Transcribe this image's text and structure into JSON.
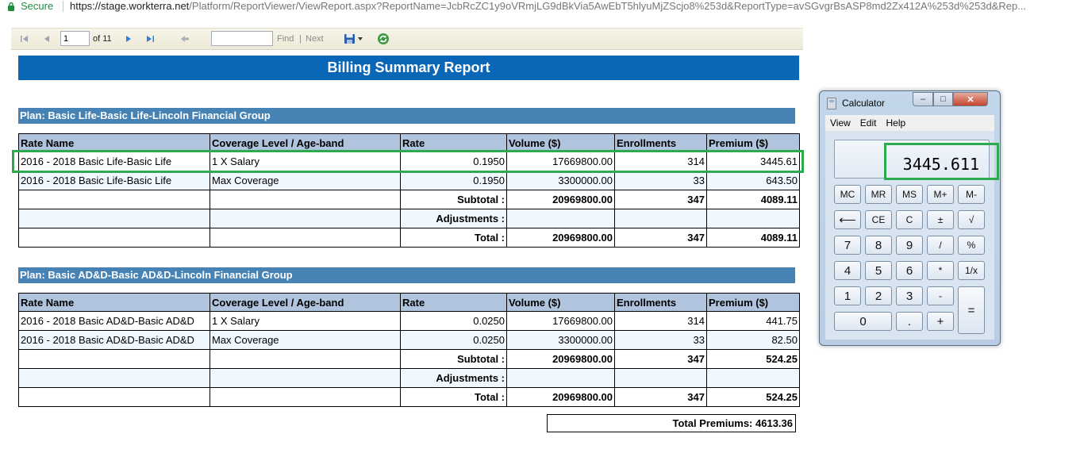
{
  "browser": {
    "secure_label": "Secure",
    "url_host": "https://stage.workterra.net",
    "url_path": "/Platform/ReportViewer/ViewReport.aspx?ReportName=JcbRcZC1y9oVRmjLG9dBkVia5AwEbT5hlyuMjZScjo8%253d&ReportType=avSGvgrBsASP8md2Zx412A%253d%253d&Rep..."
  },
  "toolbar": {
    "page_value": "1",
    "of_label": "of 11",
    "find_label": "Find",
    "separator": "|",
    "next_label": "Next"
  },
  "report": {
    "title": "Billing Summary Report",
    "columns": [
      "Rate Name",
      "Coverage Level / Age-band",
      "Rate",
      "Volume ($)",
      "Enrollments",
      "Premium ($)"
    ],
    "plans": [
      {
        "header": "Plan: Basic Life-Basic Life-Lincoln Financial Group",
        "rows": [
          [
            "2016 - 2018 Basic Life-Basic Life",
            "1 X Salary",
            "0.1950",
            "17669800.00",
            "314",
            "3445.61"
          ],
          [
            "2016 - 2018 Basic Life-Basic Life",
            "Max Coverage",
            "0.1950",
            "3300000.00",
            "33",
            "643.50"
          ]
        ],
        "subtotal_label": "Subtotal :",
        "subtotal": [
          "20969800.00",
          "347",
          "4089.11"
        ],
        "adjustments_label": "Adjustments :",
        "total_label": "Total :",
        "total": [
          "20969800.00",
          "347",
          "4089.11"
        ]
      },
      {
        "header": "Plan: Basic AD&D-Basic AD&D-Lincoln Financial Group",
        "rows": [
          [
            "2016 - 2018 Basic AD&D-Basic AD&D",
            "1 X Salary",
            "0.0250",
            "17669800.00",
            "314",
            "441.75"
          ],
          [
            "2016 - 2018 Basic AD&D-Basic AD&D",
            "Max Coverage",
            "0.0250",
            "3300000.00",
            "33",
            "82.50"
          ]
        ],
        "subtotal_label": "Subtotal :",
        "subtotal": [
          "20969800.00",
          "347",
          "524.25"
        ],
        "adjustments_label": "Adjustments :",
        "total_label": "Total :",
        "total": [
          "20969800.00",
          "347",
          "524.25"
        ]
      }
    ],
    "total_premiums": "Total Premiums: 4613.36"
  },
  "calculator": {
    "title": "Calculator",
    "menu": [
      "View",
      "Edit",
      "Help"
    ],
    "display": "3445.611",
    "buttons": {
      "mc": "MC",
      "mr": "MR",
      "ms": "MS",
      "mplus": "M+",
      "mminus": "M-",
      "back": "⟵",
      "ce": "CE",
      "c": "C",
      "plusminus": "±",
      "sqrt": "√",
      "7": "7",
      "8": "8",
      "9": "9",
      "div": "/",
      "pct": "%",
      "4": "4",
      "5": "5",
      "6": "6",
      "mul": "*",
      "recip": "1/x",
      "1": "1",
      "2": "2",
      "3": "3",
      "sub": "-",
      "eq": "=",
      "0": "0",
      "dot": ".",
      "add": "+"
    }
  }
}
